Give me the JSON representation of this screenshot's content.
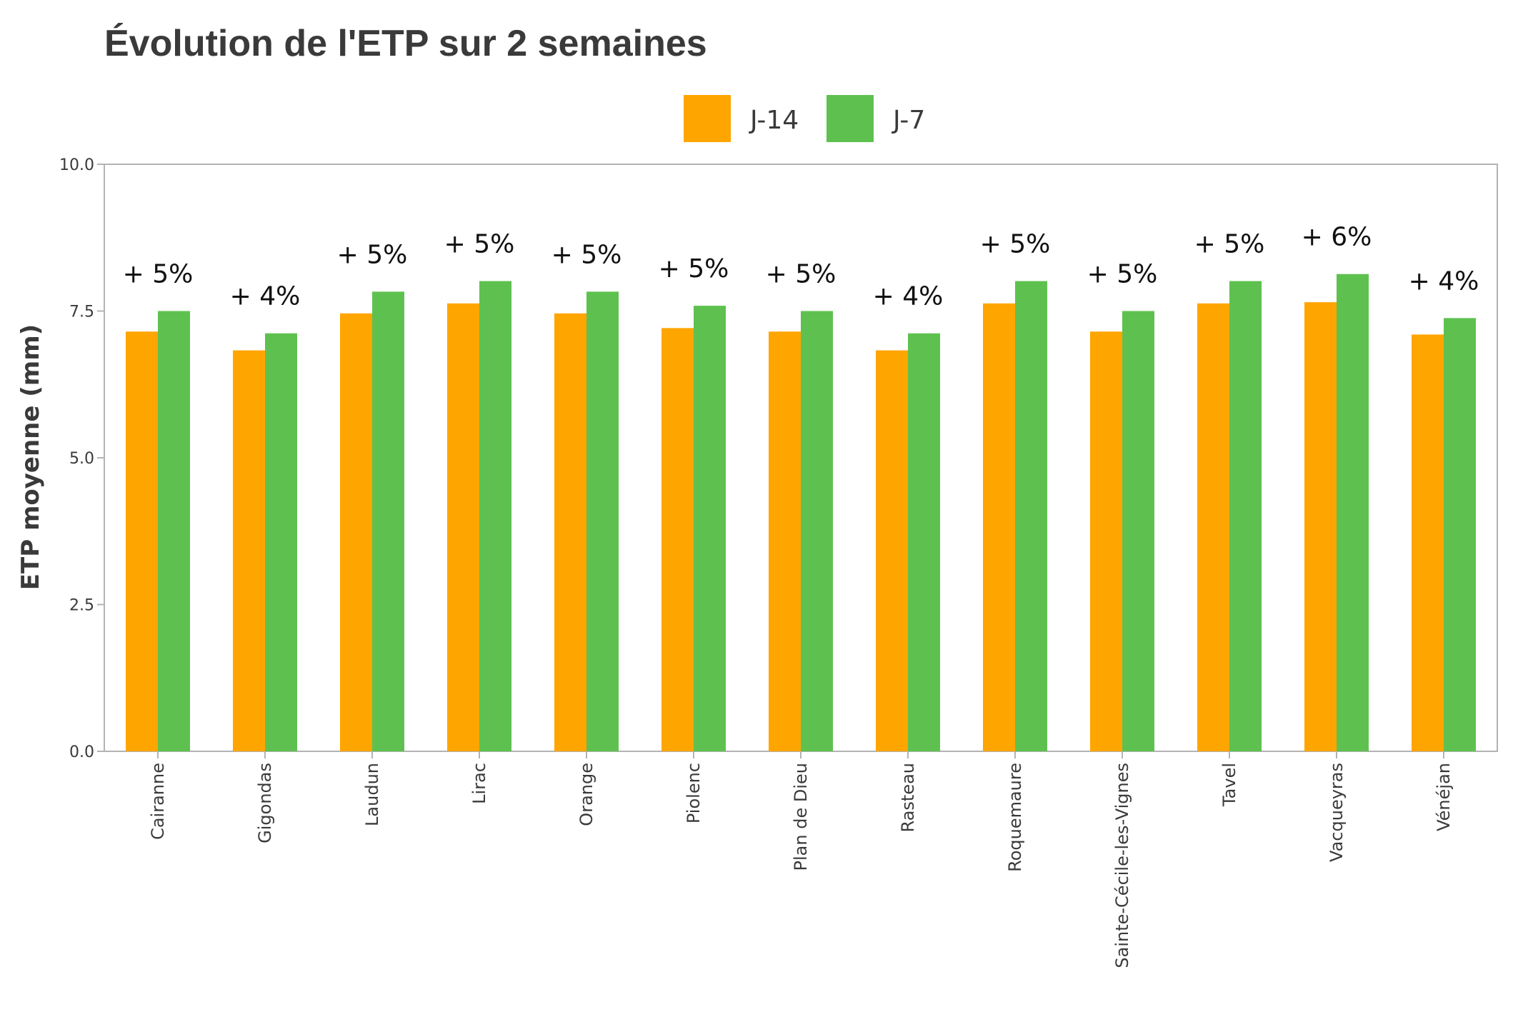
{
  "chart_data": {
    "type": "bar",
    "title": "Évolution de l'ETP sur 2 semaines",
    "ylabel": "ETP moyenne (mm)",
    "xlabel": "",
    "ylim": [
      0,
      10
    ],
    "yticks": [
      "0.0",
      "2.5",
      "5.0",
      "7.5",
      "10.0"
    ],
    "legend_position": "top-center",
    "grid": false,
    "categories": [
      "Cairanne",
      "Gigondas",
      "Laudun",
      "Lirac",
      "Orange",
      "Piolenc",
      "Plan de Dieu",
      "Rasteau",
      "Roquemaure",
      "Sainte-Cécile-les-Vignes",
      "Tavel",
      "Vacqueyras",
      "Vénéjan"
    ],
    "series": [
      {
        "name": "J-14",
        "color": "#FFA500",
        "values": [
          7.15,
          6.83,
          7.46,
          7.63,
          7.46,
          7.21,
          7.15,
          6.83,
          7.63,
          7.15,
          7.63,
          7.65,
          7.1
        ]
      },
      {
        "name": "J-7",
        "color": "#5EC14F",
        "values": [
          7.5,
          7.12,
          7.83,
          8.01,
          7.83,
          7.59,
          7.5,
          7.12,
          8.01,
          7.5,
          8.01,
          8.13,
          7.38
        ]
      }
    ],
    "annotations": [
      "+ 5%",
      "+ 4%",
      "+ 5%",
      "+ 5%",
      "+ 5%",
      "+ 5%",
      "+ 5%",
      "+ 4%",
      "+ 5%",
      "+ 5%",
      "+ 5%",
      "+ 6%",
      "+ 4%"
    ]
  }
}
